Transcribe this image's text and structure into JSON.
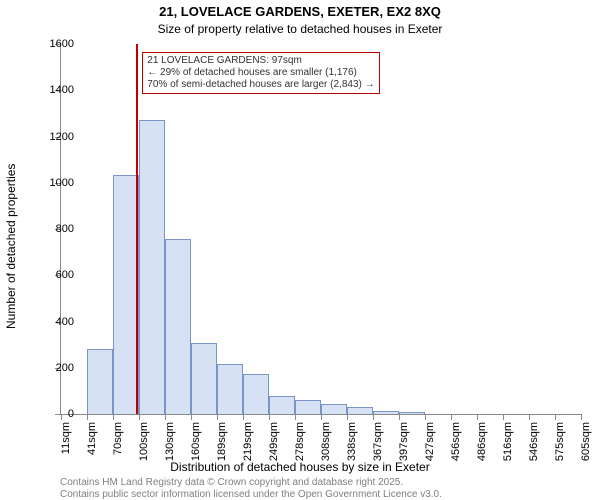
{
  "title": "21, LOVELACE GARDENS, EXETER, EX2 8XQ",
  "subtitle": "Size of property relative to detached houses in Exeter",
  "ylabel": "Number of detached properties",
  "xlabel": "Distribution of detached houses by size in Exeter",
  "footnote1": "Contains HM Land Registry data © Crown copyright and database right 2025.",
  "footnote2": "Contains public sector information licensed under the Open Government Licence v3.0.",
  "title_fontsize": 13,
  "subtitle_fontsize": 12,
  "label_fontsize": 12,
  "footnote_fontsize": 10,
  "footnote_color": "#808080",
  "chart": {
    "type": "histogram",
    "background_color": "#ffffff",
    "axis_color": "#888888",
    "xticks": [
      "11sqm",
      "41sqm",
      "70sqm",
      "100sqm",
      "130sqm",
      "160sqm",
      "189sqm",
      "219sqm",
      "249sqm",
      "278sqm",
      "308sqm",
      "338sqm",
      "367sqm",
      "397sqm",
      "427sqm",
      "456sqm",
      "486sqm",
      "516sqm",
      "546sqm",
      "575sqm",
      "605sqm"
    ],
    "ylim": [
      0,
      1600
    ],
    "yticks": [
      0,
      200,
      400,
      600,
      800,
      1000,
      1200,
      1400,
      1600
    ],
    "bars": [
      {
        "value": 0
      },
      {
        "value": 280
      },
      {
        "value": 1035
      },
      {
        "value": 1270
      },
      {
        "value": 755
      },
      {
        "value": 305
      },
      {
        "value": 215
      },
      {
        "value": 175
      },
      {
        "value": 80
      },
      {
        "value": 60
      },
      {
        "value": 45
      },
      {
        "value": 30
      },
      {
        "value": 15
      },
      {
        "value": 10
      },
      {
        "value": 0
      },
      {
        "value": 0
      },
      {
        "value": 0
      },
      {
        "value": 0
      },
      {
        "value": 0
      },
      {
        "value": 0
      }
    ],
    "bar_fill": "#d6e1f4",
    "bar_stroke": "#7a94c7",
    "reference_line": {
      "x_sqm": 97,
      "color": "#c00000",
      "width": 2
    },
    "annotation": {
      "line1": "21 LOVELACE GARDENS: 97sqm",
      "line2": "← 29% of detached houses are smaller (1,176)",
      "line3": "70% of semi-detached houses are larger (2,843) →",
      "border_color": "#c00000",
      "text_color": "#333333"
    },
    "x_min_sqm": 11,
    "x_max_sqm": 605
  }
}
